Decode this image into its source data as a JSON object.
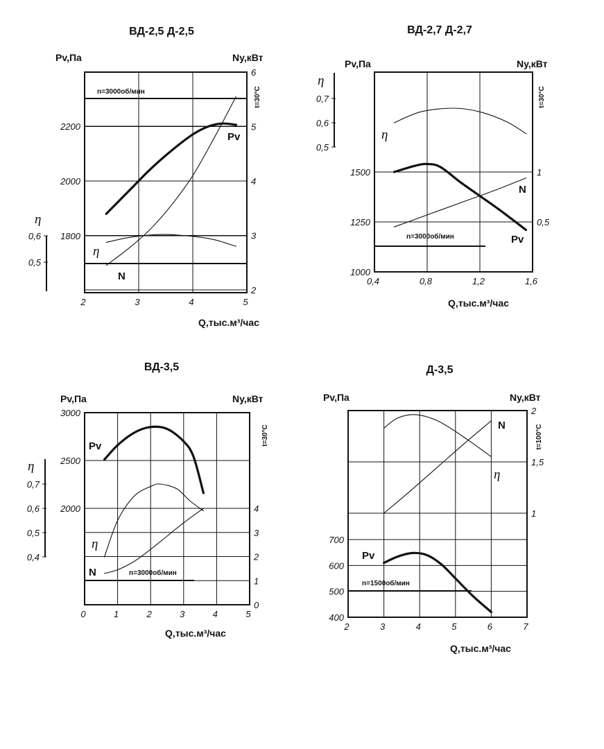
{
  "page": {
    "width": 871,
    "height": 1080
  },
  "colors": {
    "ink": "#111111",
    "grid": "#111111",
    "background": "#ffffff"
  },
  "chart_data": [
    {
      "type": "line",
      "title": "ВД-2,5   Д-2,5",
      "xlabel": "Q,тыс.м³/час",
      "ylabel_left": "Pv,Па",
      "ylabel_right": "Ny,кВт",
      "temp_label": "t=30°С",
      "eta_symbol": "η",
      "speed_label": "n=3000об/мин",
      "xlim": [
        2,
        5
      ],
      "x_ticks": [
        "2",
        "3",
        "4",
        "5"
      ],
      "p_ticks": [
        "1800",
        "2000",
        "2200"
      ],
      "n_ticks": [
        "2",
        "3",
        "4",
        "5",
        "6"
      ],
      "eta_ticks": [
        "0,5",
        "0,6"
      ],
      "series": [
        {
          "name": "Pv",
          "axis": "pressure",
          "weight": "bold",
          "x": [
            2.4,
            2.8,
            3.2,
            3.6,
            4.0,
            4.3,
            4.55,
            4.8
          ],
          "y": [
            1880,
            1960,
            2040,
            2110,
            2170,
            2200,
            2210,
            2205
          ]
        },
        {
          "name": "N",
          "axis": "power",
          "x": [
            2.4,
            2.8,
            3.2,
            3.6,
            4.0,
            4.4,
            4.8
          ],
          "y": [
            2.45,
            2.75,
            3.1,
            3.55,
            4.1,
            4.8,
            5.55
          ]
        },
        {
          "name": "η",
          "axis": "efficiency",
          "x": [
            2.4,
            2.8,
            3.2,
            3.5,
            4.0,
            4.4,
            4.8
          ],
          "y": [
            0.575,
            0.593,
            0.603,
            0.605,
            0.598,
            0.585,
            0.56
          ]
        }
      ]
    },
    {
      "type": "line",
      "title": "ВД-2,7   Д-2,7",
      "xlabel": "Q,тыс.м³/час",
      "ylabel_left": "Pv,Па",
      "ylabel_right": "Ny,кВт",
      "temp_label": "t=30°С",
      "eta_symbol": "η",
      "speed_label": "n=3000об/мин",
      "xlim": [
        0.4,
        1.6
      ],
      "x_ticks": [
        "0,4",
        "0,8",
        "1,2",
        "1,6"
      ],
      "p_ticks": [
        "1000",
        "1250",
        "1500"
      ],
      "n_ticks": [
        "0,5",
        "1"
      ],
      "eta_ticks": [
        "0,5",
        "0,6",
        "0,7"
      ],
      "series": [
        {
          "name": "Pv",
          "axis": "pressure",
          "weight": "bold",
          "x": [
            0.55,
            0.7,
            0.8,
            0.9,
            1.05,
            1.2,
            1.35,
            1.55
          ],
          "y": [
            1500,
            1530,
            1540,
            1525,
            1450,
            1380,
            1310,
            1210
          ]
        },
        {
          "name": "N",
          "axis": "power",
          "x": [
            0.55,
            0.8,
            1.05,
            1.3,
            1.55
          ],
          "y": [
            0.45,
            0.57,
            0.69,
            0.81,
            0.94
          ]
        },
        {
          "name": "η",
          "axis": "efficiency",
          "x": [
            0.55,
            0.75,
            1.0,
            1.2,
            1.4,
            1.55
          ],
          "y": [
            0.6,
            0.645,
            0.66,
            0.645,
            0.605,
            0.555
          ]
        }
      ]
    },
    {
      "type": "line",
      "title": "ВД-3,5",
      "xlabel": "Q,тыс.м³/час",
      "ylabel_left": "Pv,Па",
      "ylabel_right": "Ny,кВт",
      "temp_label": "t=30°С",
      "eta_symbol": "η",
      "speed_label": "n=3000об/мин",
      "xlim": [
        0,
        5
      ],
      "x_ticks": [
        "0",
        "1",
        "2",
        "3",
        "4",
        "5"
      ],
      "p_ticks": [
        "2000",
        "2500",
        "3000"
      ],
      "n_ticks": [
        "0",
        "1",
        "2",
        "3",
        "4"
      ],
      "eta_ticks": [
        "0,4",
        "0,5",
        "0,6",
        "0,7"
      ],
      "series": [
        {
          "name": "Pv",
          "axis": "pressure",
          "weight": "bold",
          "x": [
            0.6,
            1.0,
            1.5,
            2.0,
            2.5,
            3.0,
            3.3,
            3.6
          ],
          "y": [
            2510,
            2660,
            2790,
            2850,
            2830,
            2700,
            2540,
            2160
          ]
        },
        {
          "name": "N",
          "axis": "power",
          "x": [
            0.6,
            1.0,
            1.5,
            2.0,
            2.5,
            3.0,
            3.6
          ],
          "y": [
            1.3,
            1.45,
            1.8,
            2.3,
            2.85,
            3.4,
            4.0
          ]
        },
        {
          "name": "η",
          "axis": "efficiency",
          "x": [
            0.6,
            1.0,
            1.5,
            2.0,
            2.3,
            2.8,
            3.2,
            3.6
          ],
          "y": [
            0.4,
            0.55,
            0.65,
            0.69,
            0.7,
            0.68,
            0.63,
            0.59
          ]
        }
      ]
    },
    {
      "type": "line",
      "title": "Д-3,5",
      "xlabel": "Q,тыс.м³/час",
      "ylabel_left": "Pv,Па",
      "ylabel_right": "Ny,кВт",
      "temp_label": "t=100°С",
      "eta_symbol": "η",
      "speed_label": "n=1500об/мин",
      "xlim": [
        2,
        7
      ],
      "x_ticks": [
        "2",
        "3",
        "4",
        "5",
        "6",
        "7"
      ],
      "p_ticks": [
        "400",
        "500",
        "600",
        "700"
      ],
      "n_ticks": [
        "1",
        "1,5",
        "2"
      ],
      "eta_ticks": [],
      "series": [
        {
          "name": "Pv",
          "axis": "pressure",
          "weight": "bold",
          "x": [
            3.0,
            3.4,
            3.8,
            4.2,
            4.6,
            5.0,
            5.5,
            6.0
          ],
          "y": [
            610,
            635,
            648,
            640,
            605,
            550,
            480,
            420
          ]
        },
        {
          "name": "N",
          "axis": "power",
          "x": [
            3.0,
            3.75,
            4.5,
            5.25,
            6.0
          ],
          "y": [
            1.0,
            1.22,
            1.45,
            1.68,
            1.9
          ]
        },
        {
          "name": "η",
          "axis": "power",
          "x": [
            3.0,
            3.4,
            3.9,
            4.5,
            5.2,
            6.0
          ],
          "y": [
            1.83,
            1.93,
            1.96,
            1.9,
            1.75,
            1.55
          ]
        }
      ]
    }
  ]
}
